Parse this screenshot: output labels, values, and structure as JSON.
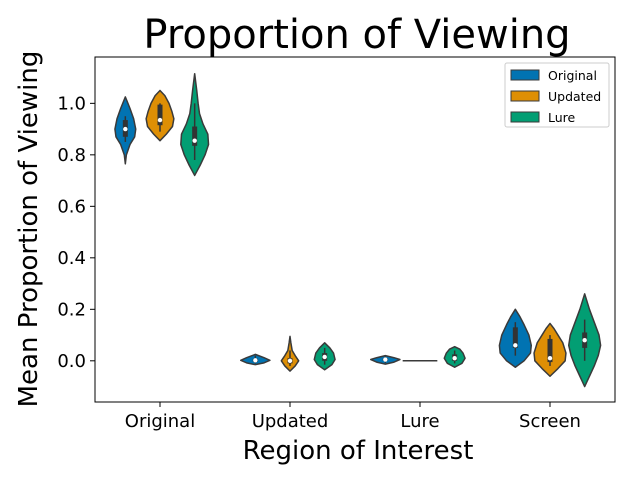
{
  "chart_data": {
    "type": "violin",
    "title": "Proportion of Viewing",
    "xlabel": "Region of Interest",
    "ylabel": "Mean Proportion of Viewing",
    "categories": [
      "Original",
      "Updated",
      "Lure",
      "Screen"
    ],
    "ylim": [
      -0.16,
      1.18
    ],
    "yticks": [
      0.0,
      0.2,
      0.4,
      0.6,
      0.8,
      1.0
    ],
    "ytick_labels": [
      "0.0",
      "0.2",
      "0.4",
      "0.6",
      "0.8",
      "1.0"
    ],
    "legend_position": "top-right",
    "grid": false,
    "series": [
      {
        "name": "Original",
        "color": "#0173b2",
        "violins": [
          {
            "category": "Original",
            "min": 0.765,
            "max": 1.025,
            "median": 0.9,
            "q1": 0.87,
            "q3": 0.935,
            "whisker_low": 0.85,
            "whisker_high": 0.95,
            "max_half_width": 0.3,
            "profile": [
              [
                0.765,
                0.0
              ],
              [
                0.8,
                0.1
              ],
              [
                0.84,
                0.45
              ],
              [
                0.87,
                0.9
              ],
              [
                0.9,
                1.0
              ],
              [
                0.94,
                0.8
              ],
              [
                0.98,
                0.45
              ],
              [
                1.025,
                0.0
              ]
            ]
          },
          {
            "category": "Updated",
            "min": -0.015,
            "max": 0.025,
            "median": 0.002,
            "q1": -0.004,
            "q3": 0.008,
            "whisker_low": -0.01,
            "whisker_high": 0.02,
            "max_half_width": 0.42,
            "profile": [
              [
                -0.015,
                0.0
              ],
              [
                -0.008,
                0.6
              ],
              [
                0.002,
                1.0
              ],
              [
                0.012,
                0.6
              ],
              [
                0.025,
                0.0
              ]
            ]
          },
          {
            "category": "Lure",
            "min": -0.013,
            "max": 0.02,
            "median": 0.005,
            "q1": 0.0,
            "q3": 0.01,
            "whisker_low": -0.008,
            "whisker_high": 0.016,
            "max_half_width": 0.42,
            "profile": [
              [
                -0.013,
                0.0
              ],
              [
                -0.005,
                0.6
              ],
              [
                0.005,
                1.0
              ],
              [
                0.012,
                0.6
              ],
              [
                0.02,
                0.0
              ]
            ]
          },
          {
            "category": "Screen",
            "min": -0.025,
            "max": 0.2,
            "median": 0.06,
            "q1": 0.05,
            "q3": 0.13,
            "whisker_low": 0.02,
            "whisker_high": 0.15,
            "max_half_width": 0.46,
            "profile": [
              [
                -0.025,
                0.0
              ],
              [
                0.0,
                0.55
              ],
              [
                0.03,
                0.95
              ],
              [
                0.06,
                1.0
              ],
              [
                0.1,
                0.85
              ],
              [
                0.14,
                0.55
              ],
              [
                0.17,
                0.3
              ],
              [
                0.2,
                0.0
              ]
            ]
          }
        ]
      },
      {
        "name": "Updated",
        "color": "#de8f05",
        "violins": [
          {
            "category": "Original",
            "min": 0.855,
            "max": 1.05,
            "median": 0.935,
            "q1": 0.915,
            "q3": 0.995,
            "whisker_low": 0.89,
            "whisker_high": 1.0,
            "max_half_width": 0.4,
            "profile": [
              [
                0.855,
                0.0
              ],
              [
                0.88,
                0.45
              ],
              [
                0.91,
                0.9
              ],
              [
                0.94,
                1.0
              ],
              [
                0.97,
                0.85
              ],
              [
                1.0,
                0.65
              ],
              [
                1.03,
                0.35
              ],
              [
                1.05,
                0.0
              ]
            ]
          },
          {
            "category": "Updated",
            "min": -0.04,
            "max": 0.095,
            "median": 0.0,
            "q1": -0.01,
            "q3": 0.01,
            "whisker_low": -0.02,
            "whisker_high": 0.04,
            "max_half_width": 0.25,
            "profile": [
              [
                -0.04,
                0.0
              ],
              [
                -0.02,
                0.6
              ],
              [
                0.0,
                1.0
              ],
              [
                0.02,
                0.6
              ],
              [
                0.04,
                0.25
              ],
              [
                0.07,
                0.1
              ],
              [
                0.095,
                0.0
              ]
            ]
          },
          {
            "category": "Lure",
            "min": 0.0,
            "max": 0.0,
            "median": 0.0,
            "q1": 0.0,
            "q3": 0.0,
            "whisker_low": 0.0,
            "whisker_high": 0.0,
            "max_half_width": 0.0,
            "profile": []
          },
          {
            "category": "Screen",
            "min": -0.06,
            "max": 0.145,
            "median": 0.01,
            "q1": -0.005,
            "q3": 0.085,
            "whisker_low": -0.02,
            "whisker_high": 0.1,
            "max_half_width": 0.46,
            "profile": [
              [
                -0.06,
                0.0
              ],
              [
                -0.03,
                0.5
              ],
              [
                0.0,
                0.95
              ],
              [
                0.03,
                1.0
              ],
              [
                0.07,
                0.8
              ],
              [
                0.1,
                0.5
              ],
              [
                0.125,
                0.25
              ],
              [
                0.145,
                0.0
              ]
            ]
          }
        ]
      },
      {
        "name": "Lure",
        "color": "#029e73",
        "violins": [
          {
            "category": "Original",
            "min": 0.72,
            "max": 1.115,
            "median": 0.855,
            "q1": 0.835,
            "q3": 0.91,
            "whisker_low": 0.78,
            "whisker_high": 1.0,
            "max_half_width": 0.4,
            "profile": [
              [
                0.72,
                0.0
              ],
              [
                0.76,
                0.4
              ],
              [
                0.8,
                0.75
              ],
              [
                0.84,
                1.0
              ],
              [
                0.88,
                0.95
              ],
              [
                0.92,
                0.6
              ],
              [
                0.96,
                0.35
              ],
              [
                1.0,
                0.25
              ],
              [
                1.05,
                0.15
              ],
              [
                1.115,
                0.0
              ]
            ]
          },
          {
            "category": "Updated",
            "min": -0.035,
            "max": 0.07,
            "median": 0.015,
            "q1": 0.0,
            "q3": 0.03,
            "whisker_low": -0.015,
            "whisker_high": 0.05,
            "max_half_width": 0.3,
            "profile": [
              [
                -0.035,
                0.0
              ],
              [
                -0.015,
                0.7
              ],
              [
                0.005,
                1.0
              ],
              [
                0.03,
                0.85
              ],
              [
                0.05,
                0.5
              ],
              [
                0.07,
                0.0
              ]
            ]
          },
          {
            "category": "Lure",
            "min": -0.025,
            "max": 0.055,
            "median": 0.01,
            "q1": 0.0,
            "q3": 0.025,
            "whisker_low": -0.01,
            "whisker_high": 0.04,
            "max_half_width": 0.3,
            "profile": [
              [
                -0.025,
                0.0
              ],
              [
                -0.01,
                0.7
              ],
              [
                0.01,
                1.0
              ],
              [
                0.03,
                0.8
              ],
              [
                0.045,
                0.5
              ],
              [
                0.055,
                0.0
              ]
            ]
          },
          {
            "category": "Screen",
            "min": -0.1,
            "max": 0.26,
            "median": 0.08,
            "q1": 0.05,
            "q3": 0.11,
            "whisker_low": 0.0,
            "whisker_high": 0.16,
            "max_half_width": 0.46,
            "profile": [
              [
                -0.1,
                0.0
              ],
              [
                -0.06,
                0.3
              ],
              [
                -0.02,
                0.6
              ],
              [
                0.02,
                0.85
              ],
              [
                0.06,
                1.0
              ],
              [
                0.1,
                0.9
              ],
              [
                0.15,
                0.6
              ],
              [
                0.2,
                0.3
              ],
              [
                0.26,
                0.0
              ]
            ]
          }
        ]
      }
    ]
  }
}
